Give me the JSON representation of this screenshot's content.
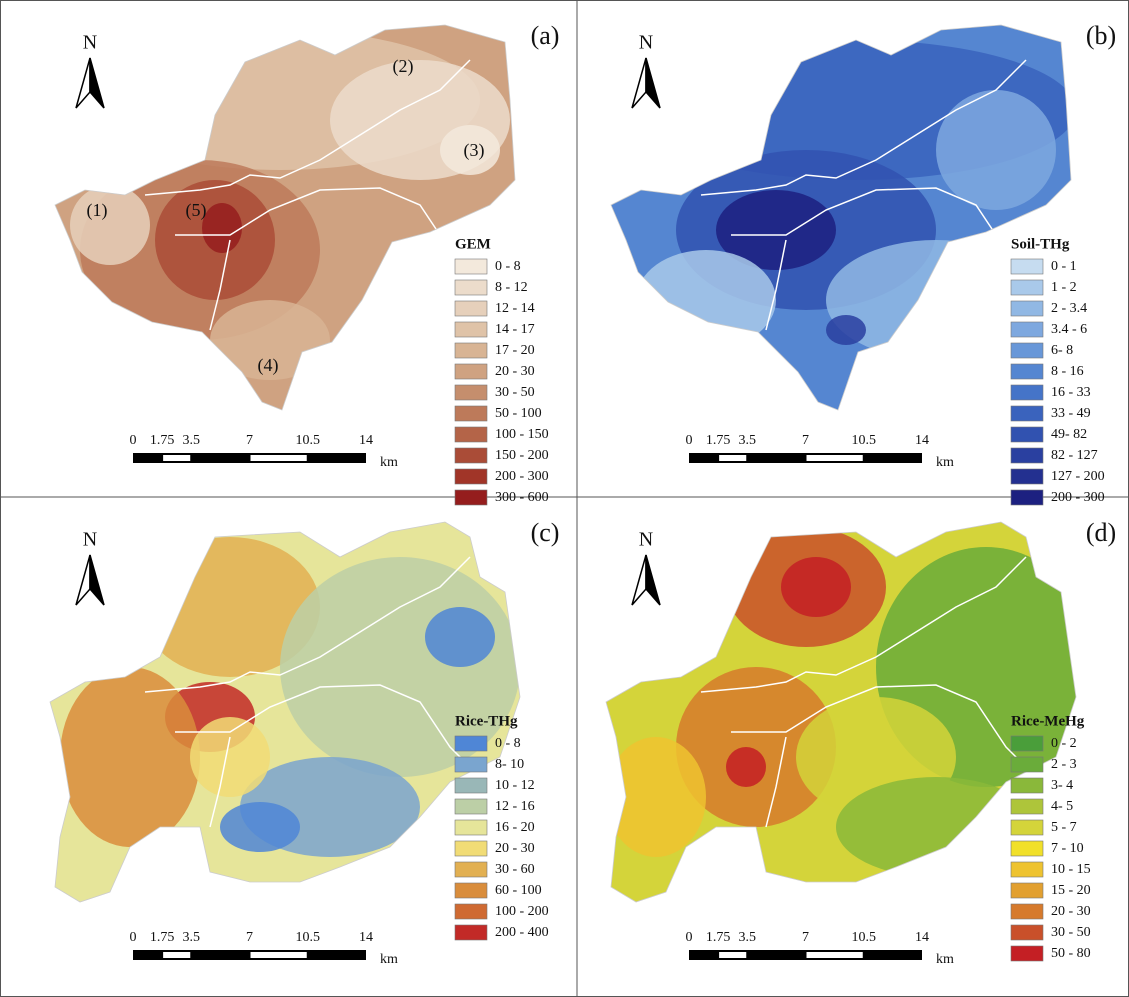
{
  "panels": [
    {
      "label": "(a)",
      "north": "N",
      "regions": [
        "(1)",
        "(2)",
        "(3)",
        "(4)",
        "(5)"
      ],
      "legend": {
        "title": "GEM",
        "items": [
          {
            "label": "0 - 8",
            "color": "#f3e9dc"
          },
          {
            "label": "8 - 12",
            "color": "#ecdccb"
          },
          {
            "label": "12 - 14",
            "color": "#e6d0bb"
          },
          {
            "label": "14 - 17",
            "color": "#dfc3a8"
          },
          {
            "label": "17 - 20",
            "color": "#d8b494"
          },
          {
            "label": "20 - 30",
            "color": "#cfa281"
          },
          {
            "label": "30 - 50",
            "color": "#c58e6d"
          },
          {
            "label": "50 - 100",
            "color": "#bd7a5a"
          },
          {
            "label": "100 - 150",
            "color": "#b46448"
          },
          {
            "label": "150 - 200",
            "color": "#aa4c37"
          },
          {
            "label": "200 - 300",
            "color": "#a13528"
          },
          {
            "label": "300 - 600",
            "color": "#951d1d"
          }
        ]
      },
      "scale": {
        "ticks": [
          "0",
          "1.75",
          "3.5",
          "7",
          "10.5",
          "14"
        ],
        "unit": "km"
      }
    },
    {
      "label": "(b)",
      "north": "N",
      "legend": {
        "title": "Soil-THg",
        "items": [
          {
            "label": "0 - 1",
            "color": "#c6dcf0"
          },
          {
            "label": "1 - 2",
            "color": "#a9c9ea"
          },
          {
            "label": "2 - 3.4",
            "color": "#91b8e4"
          },
          {
            "label": "3.4 - 6",
            "color": "#7ea8df"
          },
          {
            "label": "6- 8",
            "color": "#6897d8"
          },
          {
            "label": "8 - 16",
            "color": "#5586d1"
          },
          {
            "label": "16 - 33",
            "color": "#4574c8"
          },
          {
            "label": "33 - 49",
            "color": "#3a63bd"
          },
          {
            "label": "49- 82",
            "color": "#3152b0"
          },
          {
            "label": "82 - 127",
            "color": "#2a40a0"
          },
          {
            "label": "127 - 200",
            "color": "#233090"
          },
          {
            "label": "200 - 300",
            "color": "#1c2080"
          }
        ]
      },
      "scale": {
        "ticks": [
          "0",
          "1.75",
          "3.5",
          "7",
          "10.5",
          "14"
        ],
        "unit": "km"
      }
    },
    {
      "label": "(c)",
      "north": "N",
      "legend": {
        "title": "Rice-THg",
        "items": [
          {
            "label": "0 - 8",
            "color": "#4f86d6"
          },
          {
            "label": "8- 10",
            "color": "#7aa5cf"
          },
          {
            "label": "10 - 12",
            "color": "#99b7b7"
          },
          {
            "label": "12 - 16",
            "color": "#bccfa6"
          },
          {
            "label": "16 - 20",
            "color": "#e6e59a"
          },
          {
            "label": "20 - 30",
            "color": "#f1dc76"
          },
          {
            "label": "30 - 60",
            "color": "#e2b052"
          },
          {
            "label": "60 - 100",
            "color": "#d98d3c"
          },
          {
            "label": "100 - 200",
            "color": "#cf6a32"
          },
          {
            "label": "200 - 400",
            "color": "#c22a27"
          }
        ]
      },
      "scale": {
        "ticks": [
          "0",
          "1.75",
          "3.5",
          "7",
          "10.5",
          "14"
        ],
        "unit": "km"
      }
    },
    {
      "label": "(d)",
      "north": "N",
      "legend": {
        "title": "Rice-MeHg",
        "items": [
          {
            "label": "0 - 2",
            "color": "#4a9e3a"
          },
          {
            "label": "2 - 3",
            "color": "#6aac3a"
          },
          {
            "label": "3- 4",
            "color": "#8ab83a"
          },
          {
            "label": "4- 5",
            "color": "#aec53a"
          },
          {
            "label": "5 - 7",
            "color": "#d4d43a"
          },
          {
            "label": "7 - 10",
            "color": "#f1e02a"
          },
          {
            "label": "10 - 15",
            "color": "#eec330"
          },
          {
            "label": "15 - 20",
            "color": "#e2a030"
          },
          {
            "label": "20 - 30",
            "color": "#d67a2c"
          },
          {
            "label": "30 - 50",
            "color": "#c9502a"
          },
          {
            "label": "50 - 80",
            "color": "#c41f24"
          }
        ]
      },
      "scale": {
        "ticks": [
          "0",
          "1.75",
          "3.5",
          "7",
          "10.5",
          "14"
        ],
        "unit": "km"
      }
    }
  ]
}
